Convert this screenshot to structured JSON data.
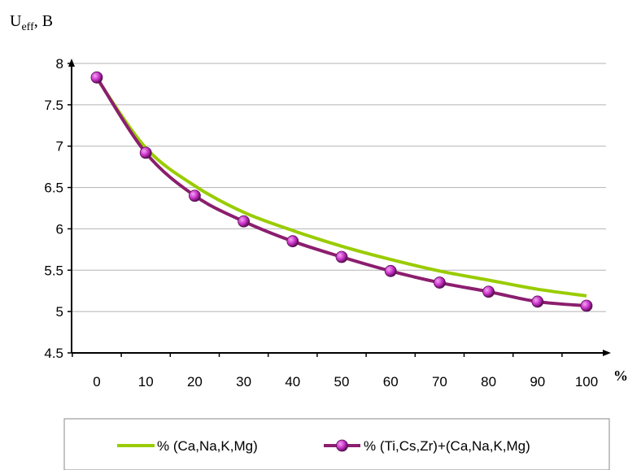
{
  "chart_data": {
    "type": "line",
    "ylabel": "U",
    "ylabel_sub": "eff",
    "ylabel_unit": ", B",
    "xunit": "%",
    "x": [
      0,
      10,
      20,
      30,
      40,
      50,
      60,
      70,
      80,
      90,
      100
    ],
    "xticks": [
      "0",
      "10",
      "20",
      "30",
      "40",
      "50",
      "60",
      "70",
      "80",
      "90",
      "100"
    ],
    "ylim": [
      4.5,
      8
    ],
    "yticks": [
      "4.5",
      "5",
      "5.5",
      "6",
      "6.5",
      "7",
      "7.5",
      "8"
    ],
    "grid": "horizontal",
    "legend_position": "bottom",
    "series": [
      {
        "name": "% (Ca,Na,K,Mg)",
        "color": "#99cc00",
        "marker": "none",
        "values": [
          7.82,
          6.98,
          6.52,
          6.2,
          5.98,
          5.79,
          5.63,
          5.49,
          5.38,
          5.27,
          5.19
        ]
      },
      {
        "name": "% (Ti,Cs,Zr)+(Ca,Na,K,Mg)",
        "color": "#8b1e6e",
        "marker": "circle",
        "marker_color": "#cc33cc",
        "values": [
          7.83,
          6.92,
          6.4,
          6.09,
          5.85,
          5.66,
          5.49,
          5.35,
          5.24,
          5.12,
          5.07
        ]
      }
    ]
  }
}
